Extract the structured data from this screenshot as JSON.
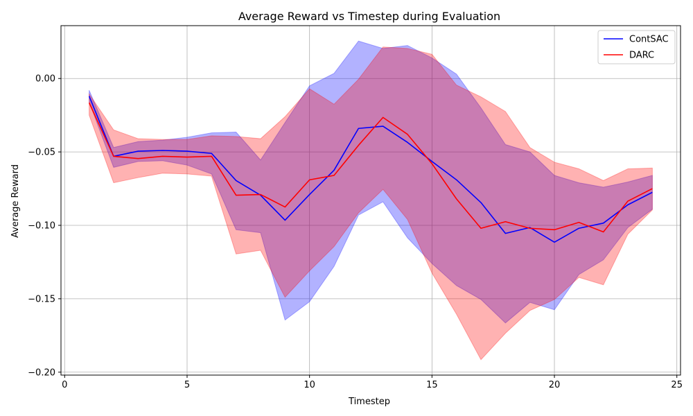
{
  "chart_data": {
    "type": "line",
    "title": "Average Reward vs Timestep during Evaluation",
    "xlabel": "Timestep",
    "ylabel": "Average Reward",
    "xlim": [
      -0.15,
      25.15
    ],
    "ylim": [
      -0.202,
      0.036
    ],
    "xticks": [
      0,
      5,
      10,
      15,
      20,
      25
    ],
    "xtick_labels": [
      "0",
      "5",
      "10",
      "15",
      "20",
      "25"
    ],
    "yticks": [
      -0.2,
      -0.15,
      -0.1,
      -0.05,
      0.0
    ],
    "ytick_labels": [
      "−0.20",
      "−0.15",
      "−0.10",
      "−0.05",
      "0.00"
    ],
    "grid": true,
    "legend_position": "top-right",
    "x": [
      1,
      2,
      3,
      4,
      5,
      6,
      7,
      8,
      9,
      10,
      11,
      12,
      13,
      14,
      15,
      16,
      17,
      18,
      19,
      20,
      21,
      22,
      23,
      24
    ],
    "series": [
      {
        "name": "ContSAC",
        "color": "#0000ff",
        "band_color": "#0000ff",
        "values": [
          -0.012,
          -0.053,
          -0.0495,
          -0.049,
          -0.0495,
          -0.051,
          -0.0695,
          -0.0795,
          -0.0965,
          -0.079,
          -0.0625,
          -0.034,
          -0.0325,
          -0.0435,
          -0.0565,
          -0.069,
          -0.0845,
          -0.1055,
          -0.1015,
          -0.1115,
          -0.102,
          -0.0985,
          -0.086,
          -0.0775
        ],
        "upper": [
          -0.008,
          -0.047,
          -0.043,
          -0.042,
          -0.04,
          -0.037,
          -0.0365,
          -0.0555,
          -0.03,
          -0.005,
          0.0035,
          0.0255,
          0.0205,
          0.0225,
          0.014,
          0.003,
          -0.02,
          -0.045,
          -0.05,
          -0.066,
          -0.071,
          -0.074,
          -0.0705,
          -0.066
        ],
        "lower": [
          -0.016,
          -0.0605,
          -0.0565,
          -0.056,
          -0.059,
          -0.065,
          -0.103,
          -0.105,
          -0.1645,
          -0.152,
          -0.128,
          -0.093,
          -0.084,
          -0.1085,
          -0.126,
          -0.141,
          -0.1505,
          -0.1665,
          -0.1525,
          -0.1575,
          -0.1335,
          -0.1235,
          -0.1015,
          -0.089
        ]
      },
      {
        "name": "DARC",
        "color": "#ff0000",
        "band_color": "#ff0000",
        "values": [
          -0.0165,
          -0.053,
          -0.0545,
          -0.053,
          -0.0535,
          -0.053,
          -0.0795,
          -0.079,
          -0.0875,
          -0.069,
          -0.066,
          -0.0455,
          -0.0265,
          -0.038,
          -0.058,
          -0.082,
          -0.102,
          -0.0975,
          -0.102,
          -0.103,
          -0.098,
          -0.1045,
          -0.0835,
          -0.075
        ],
        "upper": [
          -0.0105,
          -0.035,
          -0.041,
          -0.0415,
          -0.0415,
          -0.039,
          -0.0395,
          -0.041,
          -0.026,
          -0.007,
          -0.0175,
          -0.0005,
          0.0215,
          0.0205,
          0.0165,
          -0.0045,
          -0.0125,
          -0.0225,
          -0.047,
          -0.057,
          -0.0615,
          -0.0695,
          -0.0615,
          -0.061
        ],
        "lower": [
          -0.025,
          -0.071,
          -0.0675,
          -0.0645,
          -0.065,
          -0.0665,
          -0.1195,
          -0.117,
          -0.149,
          -0.131,
          -0.1145,
          -0.0915,
          -0.0755,
          -0.096,
          -0.1325,
          -0.1605,
          -0.1915,
          -0.1735,
          -0.158,
          -0.1505,
          -0.1355,
          -0.1405,
          -0.106,
          -0.0895
        ]
      }
    ]
  }
}
